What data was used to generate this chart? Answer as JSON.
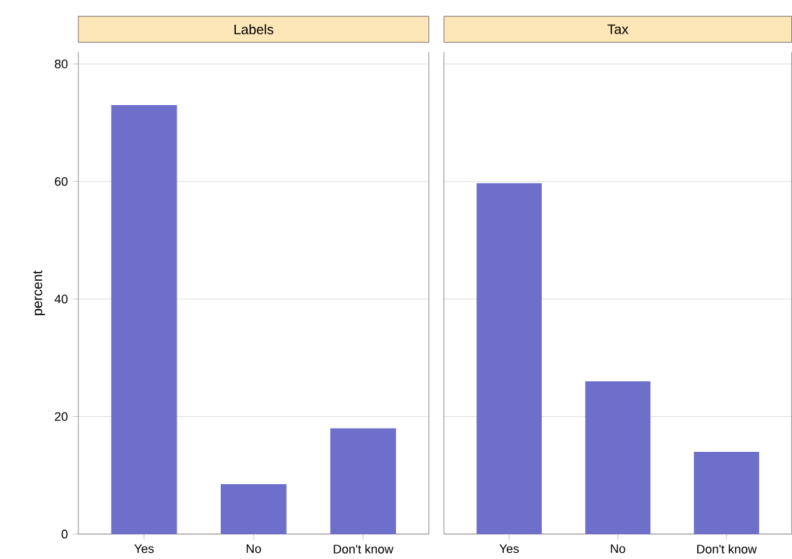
{
  "chart_data": [
    {
      "type": "bar",
      "title": "Labels",
      "ylabel": "percent",
      "categories": [
        "Yes",
        "No",
        "Don't know"
      ],
      "values": [
        73,
        8.5,
        18
      ],
      "color": "#6e6ecb",
      "ylim": [
        0,
        82
      ],
      "yticks": [
        0,
        20,
        40,
        60,
        80
      ],
      "grid": "y"
    },
    {
      "type": "bar",
      "title": "Tax",
      "categories": [
        "Yes",
        "No",
        "Don't know"
      ],
      "values": [
        59.7,
        26,
        14
      ],
      "color": "#6e6ecb",
      "ylim": [
        0,
        82
      ],
      "yticks": [
        0,
        20,
        40,
        60,
        80
      ],
      "grid": "y",
      "tick_labels": "x"
    }
  ]
}
